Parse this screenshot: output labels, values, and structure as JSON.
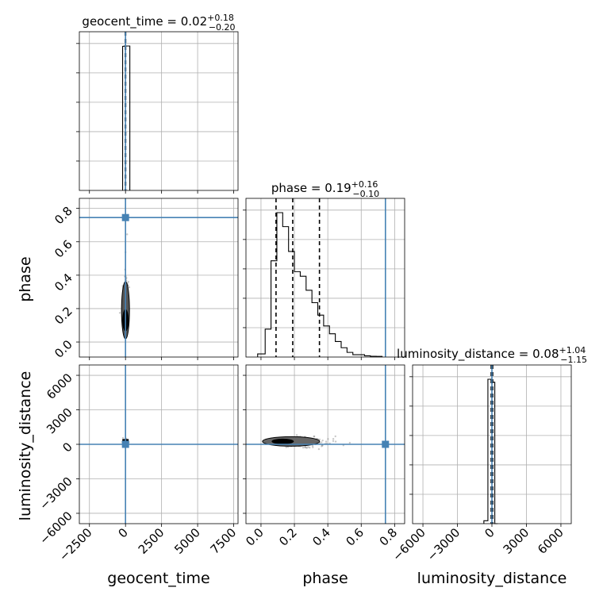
{
  "chart_data": {
    "type": "corner",
    "parameters": [
      "geocent_time",
      "phase",
      "luminosity_distance"
    ],
    "titles": [
      {
        "param": "geocent_time",
        "median": "0.02",
        "plus": "+0.18",
        "minus": "−0.20"
      },
      {
        "param": "phase",
        "median": "0.19",
        "plus": "+0.16",
        "minus": "−0.10"
      },
      {
        "param": "luminosity_distance",
        "median": "0.08",
        "plus": "+1.04",
        "minus": "−1.15"
      }
    ],
    "axes": {
      "geocent_time": {
        "range": [
          -3200,
          7800
        ],
        "ticks": [
          -2500,
          0,
          2500,
          5000,
          7500
        ],
        "tick_labels": [
          "−2500",
          "0",
          "2500",
          "5000",
          "7500"
        ]
      },
      "phase": {
        "range": [
          -0.09,
          0.86
        ],
        "ticks": [
          0.0,
          0.2,
          0.4,
          0.6,
          0.8
        ],
        "tick_labels": [
          "0.0",
          "0.2",
          "0.4",
          "0.6",
          "0.8"
        ]
      },
      "luminosity_distance": {
        "range": [
          -6900,
          6900
        ],
        "ticks": [
          -6000,
          -3000,
          0,
          3000,
          6000
        ],
        "tick_labels": [
          "−6000",
          "−3000",
          "0",
          "3000",
          "6000"
        ]
      }
    },
    "truth": {
      "geocent_time": 0,
      "phase": 0.745,
      "luminosity_distance": 0
    },
    "histograms": {
      "geocent_time": {
        "edges": [
          -200,
          -100,
          0,
          100,
          200,
          300
        ],
        "density": [
          0.998,
          1.0,
          1.0,
          1.0,
          1.0
        ],
        "quantiles": [
          -0.18,
          0.02,
          0.2
        ]
      },
      "phase": {
        "edges": [
          -0.02,
          0.025,
          0.06,
          0.095,
          0.13,
          0.165,
          0.2,
          0.235,
          0.27,
          0.305,
          0.34,
          0.375,
          0.41,
          0.445,
          0.48,
          0.515,
          0.55,
          0.585,
          0.62,
          0.655,
          0.69,
          0.725
        ],
        "density": [
          0.02,
          0.18,
          0.62,
          0.93,
          0.84,
          0.68,
          0.55,
          0.52,
          0.43,
          0.35,
          0.27,
          0.2,
          0.15,
          0.1,
          0.06,
          0.03,
          0.015,
          0.015,
          0.008,
          0.005,
          0.004
        ],
        "quantiles": [
          0.09,
          0.19,
          0.35
        ]
      },
      "luminosity_distance": {
        "edges": [
          -700,
          -350,
          0,
          250,
          500
        ],
        "density": [
          0.02,
          0.99,
          0.97,
          0.0
        ],
        "quantiles": [
          -1.07,
          0.08,
          1.12
        ]
      }
    },
    "grid": true
  }
}
